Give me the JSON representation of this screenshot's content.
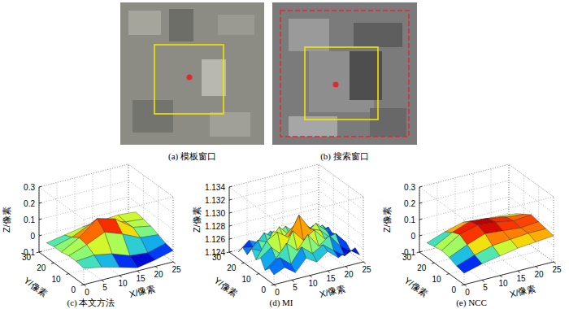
{
  "images": [
    {
      "caption": "(a) 模板窗口"
    },
    {
      "caption": "(b) 搜索窗口"
    }
  ],
  "chart_data": [
    {
      "type": "surface",
      "title": "(c) 本文方法",
      "x_label": "X/像素",
      "y_label": "Y/像素",
      "z_label": "Z/像素",
      "x": [
        0,
        5,
        10,
        15,
        20,
        25
      ],
      "y": [
        0,
        5,
        10,
        15,
        20,
        25
      ],
      "z": [
        [
          0.0,
          -0.02,
          -0.05,
          -0.08,
          -0.06,
          -0.03
        ],
        [
          0.01,
          0.02,
          0.0,
          -0.04,
          -0.05,
          -0.02
        ],
        [
          0.01,
          0.05,
          0.1,
          0.06,
          0.01,
          0.0
        ],
        [
          0.0,
          0.06,
          0.15,
          0.12,
          0.04,
          0.02
        ],
        [
          0.0,
          0.03,
          0.08,
          0.07,
          0.04,
          0.03
        ],
        [
          -0.01,
          0.01,
          0.03,
          0.04,
          0.05,
          0.04
        ]
      ],
      "xlim": [
        0,
        25
      ],
      "ylim": [
        0,
        30
      ],
      "zlim": [
        -0.1,
        0.3
      ],
      "xticks": [
        0,
        5,
        10,
        15,
        20,
        25
      ],
      "yticks": [
        0,
        10,
        20,
        30
      ],
      "zticks": [
        -0.1,
        0,
        0.1,
        0.2,
        0.3
      ],
      "grid": true
    },
    {
      "type": "surface",
      "title": "(d) MI",
      "x_label": "X/像素",
      "y_label": "Y/像素",
      "z_label": "Z/像素",
      "x": [
        0,
        3,
        6,
        9,
        12,
        15,
        18,
        21,
        24
      ],
      "y": [
        0,
        3,
        6,
        9,
        12,
        15,
        18,
        21,
        24
      ],
      "z": [
        [
          1.1255,
          1.1262,
          1.125,
          1.1268,
          1.1258,
          1.127,
          1.1256,
          1.1264,
          1.1252
        ],
        [
          1.126,
          1.1272,
          1.1258,
          1.128,
          1.1266,
          1.1275,
          1.1262,
          1.125,
          1.1258
        ],
        [
          1.1252,
          1.1265,
          1.1285,
          1.127,
          1.129,
          1.1268,
          1.128,
          1.126,
          1.1248
        ],
        [
          1.1266,
          1.1278,
          1.1262,
          1.1295,
          1.1276,
          1.1288,
          1.127,
          1.1274,
          1.1256
        ],
        [
          1.1258,
          1.1283,
          1.1292,
          1.128,
          1.131,
          1.1285,
          1.1278,
          1.1262,
          1.125
        ],
        [
          1.127,
          1.1262,
          1.1288,
          1.1275,
          1.129,
          1.1272,
          1.1284,
          1.1268,
          1.1258
        ],
        [
          1.1256,
          1.1274,
          1.1266,
          1.1286,
          1.1268,
          1.128,
          1.1264,
          1.1272,
          1.1254
        ],
        [
          1.1262,
          1.1258,
          1.1276,
          1.1264,
          1.1278,
          1.1262,
          1.127,
          1.1256,
          1.126
        ],
        [
          1.125,
          1.1264,
          1.1256,
          1.127,
          1.1258,
          1.1266,
          1.1252,
          1.1262,
          1.1248
        ]
      ],
      "xlim": [
        0,
        25
      ],
      "ylim": [
        0,
        30
      ],
      "zlim": [
        1.124,
        1.134
      ],
      "xticks": [
        0,
        5,
        10,
        15,
        20,
        25
      ],
      "yticks": [
        0,
        10,
        20,
        30
      ],
      "zticks": [
        1.124,
        1.126,
        1.128,
        {
          "value": 1.13,
          "label": "1.130"
        },
        1.132,
        1.134
      ],
      "grid": true
    },
    {
      "type": "surface",
      "title": "(e) NCC",
      "x_label": "X/像素",
      "y_label": "Y/像素",
      "z_label": "Z/像素",
      "x": [
        0,
        5,
        10,
        15,
        20,
        25
      ],
      "y": [
        0,
        5,
        10,
        15,
        20,
        25
      ],
      "z": [
        [
          -0.03,
          0.0,
          0.02,
          0.04,
          0.05,
          0.06
        ],
        [
          -0.02,
          0.02,
          0.05,
          0.06,
          0.07,
          0.07
        ],
        [
          0.0,
          0.05,
          0.09,
          0.08,
          0.07,
          0.08
        ],
        [
          0.01,
          0.08,
          0.11,
          0.1,
          0.08,
          0.09
        ],
        [
          0.0,
          0.06,
          0.1,
          0.09,
          0.07,
          0.06
        ],
        [
          -0.01,
          0.03,
          0.06,
          0.05,
          0.04,
          0.03
        ]
      ],
      "xlim": [
        0,
        25
      ],
      "ylim": [
        0,
        30
      ],
      "zlim": [
        -0.1,
        0.3
      ],
      "xticks": [
        0,
        5,
        10,
        15,
        20,
        25
      ],
      "yticks": [
        0,
        10,
        20,
        30
      ],
      "zticks": [
        -0.1,
        0,
        0.1,
        0.2,
        0.3
      ],
      "grid": true
    }
  ]
}
